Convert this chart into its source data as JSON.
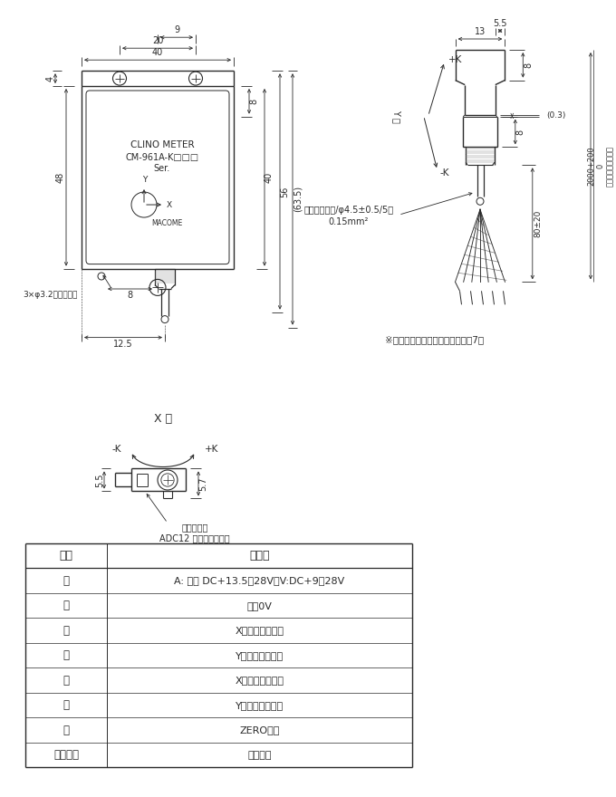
{
  "bg_color": "#ffffff",
  "line_color": "#2a2a2a",
  "dim_color": "#2a2a2a",
  "table_headers": [
    "線色",
    "内　容"
  ],
  "table_rows": [
    [
      "茶",
      "A: 電流 DC+13.5～28V　V:DC+9～28V"
    ],
    [
      "青",
      "電源0V"
    ],
    [
      "橙",
      "X軸アナログ出力"
    ],
    [
      "黄",
      "Y軸アナログ出力"
    ],
    [
      "黒",
      "X軸スイッチ出力"
    ],
    [
      "灰",
      "Y軸スイッチ出力"
    ],
    [
      "緑",
      "ZERO入力"
    ],
    [
      "シールド",
      "シールド"
    ]
  ],
  "note_switch": "※スイッチ出力オプションの場合7芯",
  "note_surface1": "取り付け面",
  "note_surface2": "ADC12 原色アルマイト",
  "note_holes": "3×φ3.2取り付け穴",
  "note_cable1": "入出力コード/φ4.5±0.5/5芯",
  "note_cable2": "0.15mm²",
  "note_2000": "2000",
  "note_sup": "+200",
  "note_sub": "0",
  "note_io": "（入出力コード長）",
  "label_clino": "CLINO METER",
  "label_model": "CM-961A-K□□□",
  "label_ser": "Ser.",
  "label_macome": "MACOME"
}
